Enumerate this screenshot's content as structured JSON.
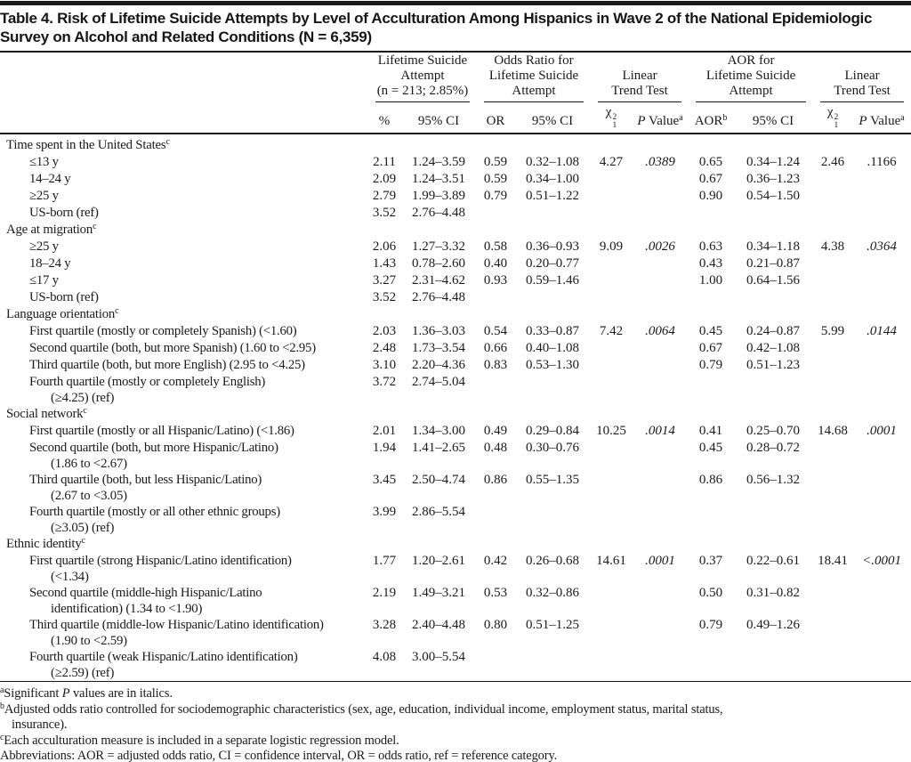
{
  "title": {
    "line1": "Table 4. Risk of Lifetime Suicide Attempts by Level of Acculturation Among Hispanics in Wave 2 of the National Epidemiologic",
    "line2": "Survey on Alcohol and Related Conditions (N = 6,359)"
  },
  "colors": {
    "ink": "#1a1a1a",
    "background": "#ffffff"
  },
  "header": {
    "groups": [
      {
        "name": "lifetime-suicide-attempt",
        "lines": [
          "Lifetime Suicide",
          "Attempt",
          "(n = 213; 2.85%)"
        ]
      },
      {
        "name": "odds-ratio-lifetime-suicide-attempt",
        "lines": [
          "Odds Ratio for",
          "Lifetime Suicide",
          "Attempt"
        ]
      },
      {
        "name": "linear-trend-test-unadjusted",
        "lines": [
          "Linear",
          "Trend Test"
        ]
      },
      {
        "name": "aor-lifetime-suicide-attempt",
        "lines": [
          "AOR for",
          "Lifetime Suicide",
          "Attempt"
        ]
      },
      {
        "name": "linear-trend-test-adjusted",
        "lines": [
          "Linear",
          "Trend Test"
        ]
      }
    ],
    "subheaders": [
      {
        "name": "percent",
        "segs": [
          {
            "t": "%"
          }
        ]
      },
      {
        "name": "ci-95-pct",
        "segs": [
          {
            "t": "95% CI"
          }
        ]
      },
      {
        "name": "or",
        "segs": [
          {
            "t": "OR"
          }
        ]
      },
      {
        "name": "ci-95-or",
        "segs": [
          {
            "t": "95% CI"
          }
        ]
      },
      {
        "name": "chi-square-1",
        "segs": [
          {
            "t": "χ"
          },
          {
            "stack": {
              "sup": "2",
              "sub": "1"
            }
          }
        ]
      },
      {
        "name": "p-value-1",
        "segs": [
          {
            "t": "P",
            "i": true
          },
          {
            "t": " Value"
          },
          {
            "t": "a",
            "sup": true
          }
        ]
      },
      {
        "name": "aor",
        "segs": [
          {
            "t": "AOR"
          },
          {
            "t": "b",
            "sup": true
          }
        ]
      },
      {
        "name": "ci-95-aor",
        "segs": [
          {
            "t": "95% CI"
          }
        ]
      },
      {
        "name": "chi-square-2",
        "segs": [
          {
            "t": "χ"
          },
          {
            "stack": {
              "sup": "2",
              "sub": "1"
            }
          }
        ]
      },
      {
        "name": "p-value-2",
        "segs": [
          {
            "t": "P",
            "i": true
          },
          {
            "t": " Value"
          },
          {
            "t": "a",
            "sup": true
          }
        ]
      }
    ]
  },
  "rows": [
    {
      "type": "section",
      "label": "Time spent in the United States",
      "fn": "c"
    },
    {
      "type": "data",
      "label": "≤13 y",
      "cells": [
        "2.11",
        "1.24–3.59",
        "0.59",
        "0.32–1.08",
        "4.27",
        {
          "t": ".0389",
          "i": true
        },
        "0.65",
        "0.34–1.24",
        "2.46",
        ".1166"
      ]
    },
    {
      "type": "data",
      "label": "14–24 y",
      "cells": [
        "2.09",
        "1.24–3.51",
        "0.59",
        "0.34–1.00",
        "",
        "",
        "0.67",
        "0.36–1.23",
        "",
        ""
      ]
    },
    {
      "type": "data",
      "label": "≥25 y",
      "cells": [
        "2.79",
        "1.99–3.89",
        "0.79",
        "0.51–1.22",
        "",
        "",
        "0.90",
        "0.54–1.50",
        "",
        ""
      ]
    },
    {
      "type": "data",
      "label": "US-born (ref)",
      "cells": [
        "3.52",
        "2.76–4.48",
        "",
        "",
        "",
        "",
        "",
        "",
        "",
        ""
      ]
    },
    {
      "type": "section",
      "label": "Age at migration",
      "fn": "c"
    },
    {
      "type": "data",
      "label": "≥25 y",
      "cells": [
        "2.06",
        "1.27–3.32",
        "0.58",
        "0.36–0.93",
        "9.09",
        {
          "t": ".0026",
          "i": true
        },
        "0.63",
        "0.34–1.18",
        "4.38",
        {
          "t": ".0364",
          "i": true
        }
      ]
    },
    {
      "type": "data",
      "label": "18–24 y",
      "cells": [
        "1.43",
        "0.78–2.60",
        "0.40",
        "0.20–0.77",
        "",
        "",
        "0.43",
        "0.21–0.87",
        "",
        ""
      ]
    },
    {
      "type": "data",
      "label": "≤17 y",
      "cells": [
        "3.27",
        "2.31–4.62",
        "0.93",
        "0.59–1.46",
        "",
        "",
        "1.00",
        "0.64–1.56",
        "",
        ""
      ]
    },
    {
      "type": "data",
      "label": "US-born (ref)",
      "cells": [
        "3.52",
        "2.76–4.48",
        "",
        "",
        "",
        "",
        "",
        "",
        "",
        ""
      ]
    },
    {
      "type": "section",
      "label": "Language orientation",
      "fn": "c"
    },
    {
      "type": "data",
      "label": "First quartile (mostly or completely Spanish) (<1.60)",
      "cells": [
        "2.03",
        "1.36–3.03",
        "0.54",
        "0.33–0.87",
        "7.42",
        {
          "t": ".0064",
          "i": true
        },
        "0.45",
        "0.24–0.87",
        "5.99",
        {
          "t": ".0144",
          "i": true
        }
      ]
    },
    {
      "type": "data",
      "label": "Second quartile (both, but more Spanish) (1.60 to <2.95)",
      "cells": [
        "2.48",
        "1.73–3.54",
        "0.66",
        "0.40–1.08",
        "",
        "",
        "0.67",
        "0.42–1.08",
        "",
        ""
      ]
    },
    {
      "type": "data",
      "label": "Third quartile (both, but more English) (2.95 to <4.25)",
      "cells": [
        "3.10",
        "2.20–4.36",
        "0.83",
        "0.53–1.30",
        "",
        "",
        "0.79",
        "0.51–1.23",
        "",
        ""
      ]
    },
    {
      "type": "data",
      "label": "Fourth quartile (mostly or completely English)",
      "label2": "(≥4.25) (ref)",
      "cells": [
        "3.72",
        "2.74–5.04",
        "",
        "",
        "",
        "",
        "",
        "",
        "",
        ""
      ]
    },
    {
      "type": "section",
      "label": "Social network",
      "fn": "c"
    },
    {
      "type": "data",
      "label": "First quartile (mostly or all Hispanic/Latino) (<1.86)",
      "cells": [
        "2.01",
        "1.34–3.00",
        "0.49",
        "0.29–0.84",
        "10.25",
        {
          "t": ".0014",
          "i": true
        },
        "0.41",
        "0.25–0.70",
        "14.68",
        {
          "t": ".0001",
          "i": true
        }
      ]
    },
    {
      "type": "data",
      "label": "Second quartile (both, but more Hispanic/Latino)",
      "label2": "(1.86 to <2.67)",
      "cells": [
        "1.94",
        "1.41–2.65",
        "0.48",
        "0.30–0.76",
        "",
        "",
        "0.45",
        "0.28–0.72",
        "",
        ""
      ]
    },
    {
      "type": "data",
      "label": "Third quartile (both, but less Hispanic/Latino)",
      "label2": "(2.67 to <3.05)",
      "cells": [
        "3.45",
        "2.50–4.74",
        "0.86",
        "0.55–1.35",
        "",
        "",
        "0.86",
        "0.56–1.32",
        "",
        ""
      ]
    },
    {
      "type": "data",
      "label": "Fourth quartile (mostly or all other ethnic groups)",
      "label2": "(≥3.05) (ref)",
      "cells": [
        "3.99",
        "2.86–5.54",
        "",
        "",
        "",
        "",
        "",
        "",
        "",
        ""
      ]
    },
    {
      "type": "section",
      "label": "Ethnic identity",
      "fn": "c"
    },
    {
      "type": "data",
      "label": "First quartile (strong Hispanic/Latino identification)",
      "label2": "(<1.34)",
      "cells": [
        "1.77",
        "1.20–2.61",
        "0.42",
        "0.26–0.68",
        "14.61",
        {
          "t": ".0001",
          "i": true
        },
        "0.37",
        "0.22–0.61",
        "18.41",
        {
          "t": "<.0001",
          "i": true
        }
      ]
    },
    {
      "type": "data",
      "label": "Second quartile (middle-high Hispanic/Latino",
      "label2": "identification) (1.34 to <1.90)",
      "cells": [
        "2.19",
        "1.49–3.21",
        "0.53",
        "0.32–0.86",
        "",
        "",
        "0.50",
        "0.31–0.82",
        "",
        ""
      ]
    },
    {
      "type": "data",
      "label": "Third quartile (middle-low Hispanic/Latino identification)",
      "label2": "(1.90 to <2.59)",
      "cells": [
        "3.28",
        "2.40–4.48",
        "0.80",
        "0.51–1.25",
        "",
        "",
        "0.79",
        "0.49–1.26",
        "",
        ""
      ]
    },
    {
      "type": "data",
      "label": "Fourth quartile (weak Hispanic/Latino identification)",
      "label2": "(≥2.59) (ref)",
      "cells": [
        "4.08",
        "3.00–5.54",
        "",
        "",
        "",
        "",
        "",
        "",
        "",
        ""
      ]
    }
  ],
  "footnotes": [
    {
      "lines": [
        {
          "indent": false,
          "segs": [
            {
              "t": "a",
              "sup": true
            },
            {
              "t": "Significant "
            },
            {
              "t": "P",
              "i": true
            },
            {
              "t": " values are in italics."
            }
          ]
        }
      ]
    },
    {
      "lines": [
        {
          "indent": false,
          "segs": [
            {
              "t": "b",
              "sup": true
            },
            {
              "t": "Adjusted odds ratio controlled for sociodemographic characteristics (sex, age, education, individual income, employment status, marital status,"
            }
          ]
        },
        {
          "indent": true,
          "segs": [
            {
              "t": "insurance)."
            }
          ]
        }
      ]
    },
    {
      "lines": [
        {
          "indent": false,
          "segs": [
            {
              "t": "c",
              "sup": true
            },
            {
              "t": "Each acculturation measure is included in a separate logistic regression model."
            }
          ]
        }
      ]
    },
    {
      "lines": [
        {
          "indent": false,
          "segs": [
            {
              "t": "Abbreviations: AOR = adjusted odds ratio, CI = confidence interval, OR = odds ratio, ref = reference category."
            }
          ]
        }
      ]
    }
  ]
}
